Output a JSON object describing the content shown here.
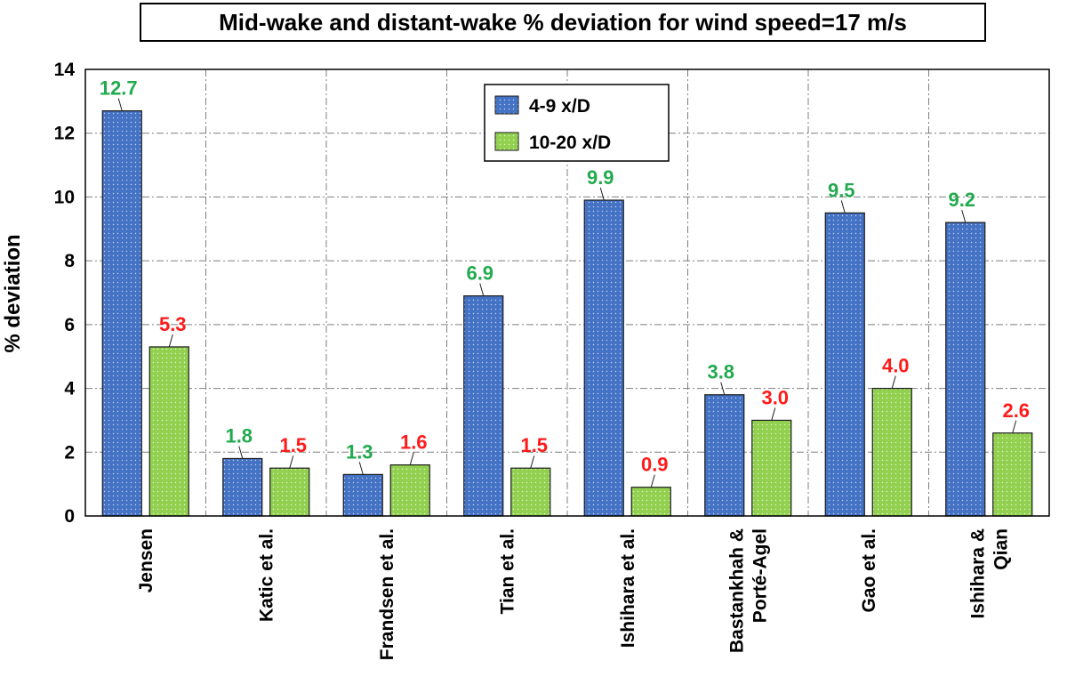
{
  "chart_data": {
    "type": "bar",
    "title": "Mid-wake and distant-wake % deviation for wind speed=17 m/s",
    "xlabel": "",
    "ylabel": "% deviation",
    "ylim": [
      0,
      14
    ],
    "yticks": [
      0,
      2,
      4,
      6,
      8,
      10,
      12,
      14
    ],
    "grid": true,
    "legend_position": "top-center",
    "categories": [
      [
        "Jensen"
      ],
      [
        "Katic et al."
      ],
      [
        "Frandsen et al."
      ],
      [
        "Tian et al."
      ],
      [
        "Ishihara et al."
      ],
      [
        "Bastankhah &",
        "Porté-Agel"
      ],
      [
        "Gao et al."
      ],
      [
        "Ishihara &",
        "Qian"
      ]
    ],
    "series": [
      {
        "name": "4-9 x/D",
        "color": "#4472c4",
        "label_color": "#22aa4e",
        "values": [
          12.7,
          1.8,
          1.3,
          6.9,
          9.9,
          3.8,
          9.5,
          9.2
        ],
        "labels": [
          "12.7",
          "1.8",
          "1.3",
          "6.9",
          "9.9",
          "3.8",
          "9.5",
          "9.2"
        ]
      },
      {
        "name": "10-20 x/D",
        "color": "#92d050",
        "label_color": "#ff1a1a",
        "values": [
          5.3,
          1.5,
          1.6,
          1.5,
          0.9,
          3.0,
          4.0,
          2.6
        ],
        "labels": [
          "5.3",
          "1.5",
          "1.6",
          "1.5",
          "0.9",
          "3.0",
          "4.0",
          "2.6"
        ]
      }
    ]
  }
}
